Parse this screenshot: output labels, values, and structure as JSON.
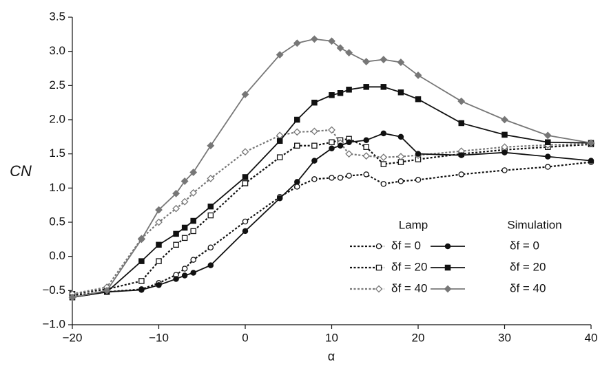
{
  "chart_data": {
    "type": "line",
    "xlabel": "α",
    "ylabel": "CN",
    "xlim": [
      -20,
      40
    ],
    "ylim": [
      -1.0,
      3.5
    ],
    "xticks": [
      {
        "value": -20,
        "label": "−20"
      },
      {
        "value": -10,
        "label": "−10"
      },
      0,
      10,
      20,
      30,
      40
    ],
    "yticks": [
      {
        "value": -1.0,
        "label": "−1.0"
      },
      {
        "value": -0.5,
        "label": "−0.5"
      },
      {
        "value": 0,
        "label": "0.0"
      },
      0.5,
      {
        "value": 1,
        "label": "1.0"
      },
      1.5,
      {
        "value": 2,
        "label": "2.0"
      },
      2.5,
      {
        "value": 3,
        "label": "3.0"
      },
      3.5
    ],
    "legend_titles": [
      "Lamp",
      "Simulation"
    ],
    "series": [
      {
        "name": "δf = 0",
        "color": "#111111",
        "dash": true,
        "marker": "circle",
        "filled": false,
        "x": [
          -20,
          -16,
          -12,
          -10,
          -8,
          -7,
          -6,
          -4,
          0,
          4,
          6,
          8,
          10,
          11,
          12,
          14,
          16,
          18,
          20,
          25,
          30,
          35,
          40
        ],
        "values": [
          -0.57,
          -0.52,
          -0.48,
          -0.39,
          -0.27,
          -0.18,
          -0.05,
          0.13,
          0.51,
          0.87,
          1.02,
          1.13,
          1.15,
          1.15,
          1.18,
          1.2,
          1.06,
          1.1,
          1.12,
          1.2,
          1.26,
          1.31,
          1.38
        ]
      },
      {
        "name": "δf = 20",
        "color": "#111111",
        "dash": true,
        "marker": "square",
        "filled": false,
        "x": [
          -20,
          -16,
          -12,
          -10,
          -8,
          -7,
          -6,
          -4,
          0,
          4,
          6,
          8,
          10,
          11,
          12,
          14,
          16,
          18,
          20,
          25,
          30,
          35,
          40
        ],
        "values": [
          -0.55,
          -0.48,
          -0.36,
          -0.07,
          0.17,
          0.27,
          0.37,
          0.6,
          1.07,
          1.45,
          1.62,
          1.62,
          1.67,
          1.7,
          1.72,
          1.6,
          1.35,
          1.38,
          1.42,
          1.5,
          1.56,
          1.6,
          1.64
        ]
      },
      {
        "name": "δf = 40",
        "color": "#777777",
        "dash": true,
        "marker": "diamond",
        "filled": false,
        "x": [
          -20,
          -16,
          -12,
          -10,
          -8,
          -7,
          -6,
          -4,
          0,
          4,
          6,
          8,
          10,
          11,
          12,
          14,
          16,
          18,
          20,
          25,
          30,
          35,
          40
        ],
        "values": [
          -0.55,
          -0.45,
          0.26,
          0.5,
          0.7,
          0.8,
          0.93,
          1.14,
          1.53,
          1.77,
          1.82,
          1.83,
          1.85,
          1.66,
          1.5,
          1.47,
          1.45,
          1.46,
          1.48,
          1.54,
          1.6,
          1.63,
          1.65
        ]
      },
      {
        "name": "δf = 0",
        "color": "#111111",
        "dash": false,
        "marker": "circle",
        "filled": true,
        "x": [
          -20,
          -16,
          -12,
          -10,
          -8,
          -7,
          -6,
          -4,
          0,
          4,
          6,
          8,
          10,
          11,
          12,
          14,
          16,
          18,
          20,
          25,
          30,
          35,
          40
        ],
        "values": [
          -0.6,
          -0.52,
          -0.49,
          -0.42,
          -0.33,
          -0.28,
          -0.24,
          -0.13,
          0.37,
          0.85,
          1.09,
          1.4,
          1.58,
          1.62,
          1.67,
          1.7,
          1.8,
          1.75,
          1.5,
          1.48,
          1.52,
          1.46,
          1.4
        ]
      },
      {
        "name": "δf = 20",
        "color": "#111111",
        "dash": false,
        "marker": "square",
        "filled": true,
        "x": [
          -20,
          -16,
          -12,
          -10,
          -8,
          -7,
          -6,
          -4,
          0,
          4,
          6,
          8,
          10,
          11,
          12,
          14,
          16,
          18,
          20,
          25,
          30,
          35,
          40
        ],
        "values": [
          -0.6,
          -0.52,
          -0.07,
          0.17,
          0.33,
          0.42,
          0.52,
          0.73,
          1.16,
          1.69,
          2.0,
          2.25,
          2.36,
          2.39,
          2.44,
          2.48,
          2.48,
          2.4,
          2.3,
          1.95,
          1.78,
          1.67,
          1.66
        ]
      },
      {
        "name": "δf = 40",
        "color": "#777777",
        "dash": false,
        "marker": "diamond",
        "filled": true,
        "x": [
          -20,
          -16,
          -12,
          -10,
          -8,
          -7,
          -6,
          -4,
          0,
          4,
          6,
          8,
          10,
          11,
          12,
          14,
          16,
          18,
          20,
          25,
          30,
          35,
          40
        ],
        "values": [
          -0.6,
          -0.5,
          0.25,
          0.68,
          0.92,
          1.1,
          1.23,
          1.62,
          2.37,
          2.95,
          3.12,
          3.18,
          3.15,
          3.05,
          2.98,
          2.85,
          2.88,
          2.84,
          2.65,
          2.27,
          2.0,
          1.77,
          1.66
        ]
      }
    ]
  }
}
